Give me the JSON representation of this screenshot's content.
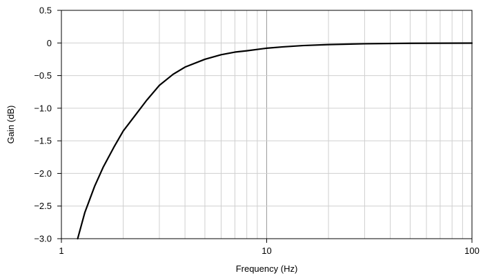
{
  "chart_data": {
    "type": "line",
    "xscale": "log",
    "xlim": [
      1,
      100
    ],
    "ylim": [
      -3.0,
      0.5
    ],
    "xlabel": "Frequency (Hz)",
    "ylabel": "Gain (dB)",
    "grid": true,
    "x_ticks": [
      1,
      10,
      100
    ],
    "x_tick_labels": [
      "1",
      "10",
      "100"
    ],
    "y_ticks": [
      0.5,
      0,
      -0.5,
      -1.0,
      -1.5,
      -2.0,
      -2.5,
      -3.0
    ],
    "y_tick_labels": [
      "0.5",
      "0",
      "−0.5",
      "−1.0",
      "−1.5",
      "−2.0",
      "−2.5",
      "−3.0"
    ],
    "series": [
      {
        "color": "#000000",
        "x": [
          1.2,
          1.3,
          1.45,
          1.6,
          1.8,
          2.0,
          2.3,
          2.6,
          3.0,
          3.5,
          4.0,
          5.0,
          6.0,
          7.0,
          8.0,
          10.0,
          12.0,
          15.0,
          20.0,
          30.0,
          50.0,
          100.0
        ],
        "y": [
          -3.0,
          -2.6,
          -2.2,
          -1.9,
          -1.6,
          -1.35,
          -1.1,
          -0.88,
          -0.65,
          -0.48,
          -0.37,
          -0.25,
          -0.18,
          -0.14,
          -0.12,
          -0.08,
          -0.06,
          -0.04,
          -0.025,
          -0.012,
          -0.005,
          -0.002
        ]
      }
    ]
  }
}
